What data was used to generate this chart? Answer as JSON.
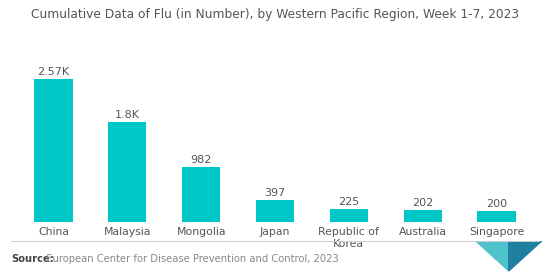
{
  "title": "Cumulative Data of Flu (in Number), by Western Pacific Region, Week 1-7, 2023",
  "categories": [
    "China",
    "Malaysia",
    "Mongolia",
    "Japan",
    "Republic of\nKorea",
    "Australia",
    "Singapore"
  ],
  "values": [
    2570,
    1800,
    982,
    397,
    225,
    202,
    200
  ],
  "value_labels": [
    "2.57K",
    "1.8K",
    "982",
    "397",
    "225",
    "202",
    "200"
  ],
  "bar_color": "#00C8C8",
  "background_color": "#ffffff",
  "source_label": "Source:",
  "source_text": "  European Center for Disease Prevention and Control, 2023",
  "title_fontsize": 8.8,
  "label_fontsize": 7.8,
  "value_fontsize": 8.0,
  "source_fontsize": 7.2,
  "ylim": [
    0,
    3100
  ],
  "bar_width": 0.52,
  "logo_color1": "#4FC3CB",
  "logo_color2": "#1E7FA0"
}
